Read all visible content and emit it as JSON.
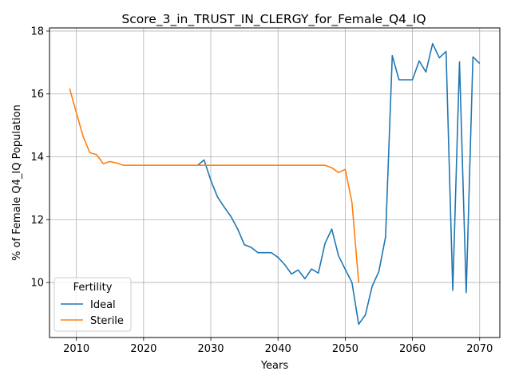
{
  "chart_data": {
    "type": "line",
    "title": "Score_3_in_TRUST_IN_CLERGY_for_Female_Q4_IQ",
    "xlabel": "Years",
    "ylabel": "% of Female Q4_IQ Population",
    "xlim": [
      2006,
      2073
    ],
    "ylim": [
      8.25,
      18.1
    ],
    "xticks": [
      2010,
      2020,
      2030,
      2040,
      2050,
      2060,
      2070
    ],
    "yticks": [
      10,
      12,
      14,
      16,
      18
    ],
    "grid": true,
    "legend": {
      "title": "Fertility",
      "placement": "lower-left"
    },
    "colors": {
      "Ideal": "#1f77b4",
      "Sterile": "#ff7f0e"
    },
    "series": [
      {
        "name": "Ideal",
        "x": [
          2028,
          2029,
          2030,
          2031,
          2032,
          2033,
          2034,
          2035,
          2036,
          2037,
          2038,
          2039,
          2040,
          2041,
          2042,
          2043,
          2044,
          2045,
          2046,
          2047,
          2048,
          2049,
          2050,
          2051,
          2052,
          2053,
          2054,
          2055,
          2056,
          2057,
          2058,
          2059,
          2060,
          2061,
          2062,
          2063,
          2064,
          2065,
          2066,
          2067,
          2068,
          2069,
          2070
        ],
        "y": [
          13.72,
          13.9,
          13.25,
          12.72,
          12.4,
          12.1,
          11.7,
          11.2,
          11.12,
          10.95,
          10.95,
          10.95,
          10.8,
          10.57,
          10.27,
          10.4,
          10.12,
          10.43,
          10.3,
          11.25,
          11.7,
          10.85,
          10.42,
          10.0,
          8.67,
          8.97,
          9.88,
          10.35,
          11.45,
          17.22,
          16.45,
          16.45,
          16.45,
          17.05,
          16.7,
          17.6,
          17.15,
          17.35,
          9.75,
          17.02,
          9.68,
          17.18,
          16.97
        ]
      },
      {
        "name": "Sterile",
        "x": [
          2009,
          2010,
          2011,
          2012,
          2013,
          2014,
          2015,
          2016,
          2017,
          2018,
          2019,
          2020,
          2021,
          2022,
          2023,
          2024,
          2025,
          2026,
          2027,
          2028,
          2029,
          2030,
          2031,
          2032,
          2033,
          2034,
          2035,
          2036,
          2037,
          2038,
          2039,
          2040,
          2041,
          2042,
          2043,
          2044,
          2045,
          2046,
          2047,
          2048,
          2049,
          2050,
          2051,
          2052
        ],
        "y": [
          16.17,
          15.4,
          14.65,
          14.13,
          14.07,
          13.78,
          13.85,
          13.8,
          13.73,
          13.73,
          13.73,
          13.73,
          13.73,
          13.73,
          13.73,
          13.73,
          13.73,
          13.73,
          13.73,
          13.73,
          13.73,
          13.73,
          13.73,
          13.73,
          13.73,
          13.73,
          13.73,
          13.73,
          13.73,
          13.73,
          13.73,
          13.73,
          13.73,
          13.73,
          13.73,
          13.73,
          13.73,
          13.73,
          13.73,
          13.65,
          13.5,
          13.6,
          12.55,
          10.0
        ]
      }
    ]
  }
}
